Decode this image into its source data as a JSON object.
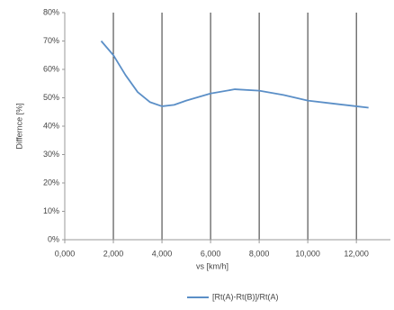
{
  "chart_data": {
    "type": "line",
    "x_label": "vs [km/h]",
    "y_label": "Differnce [%]",
    "x": [
      1500,
      2000,
      2500,
      3000,
      3500,
      4000,
      4500,
      5000,
      6000,
      7000,
      8000,
      9000,
      10000,
      11000,
      12000,
      12500
    ],
    "series": [
      {
        "name": "[Rt(A)-Rt(B)]/Rt(A)",
        "color": "#5b8fc7",
        "values": [
          70,
          65,
          58,
          52,
          48.5,
          47,
          47.5,
          49,
          51.5,
          53,
          52.5,
          51,
          49,
          48,
          47,
          46.5
        ]
      }
    ],
    "xlim": [
      0,
      13400
    ],
    "xticks": [
      {
        "value": 0,
        "label": "0,000"
      },
      {
        "value": 2000,
        "label": "2,000"
      },
      {
        "value": 4000,
        "label": "4,000"
      },
      {
        "value": 6000,
        "label": "6,000"
      },
      {
        "value": 8000,
        "label": "8,000"
      },
      {
        "value": 10000,
        "label": "10,000"
      },
      {
        "value": 12000,
        "label": "12,000"
      }
    ],
    "ylim": [
      0,
      80
    ],
    "yticks": [
      {
        "value": 0,
        "label": "0%"
      },
      {
        "value": 10,
        "label": "10%"
      },
      {
        "value": 20,
        "label": "20%"
      },
      {
        "value": 30,
        "label": "30%"
      },
      {
        "value": 40,
        "label": "40%"
      },
      {
        "value": 50,
        "label": "50%"
      },
      {
        "value": 60,
        "label": "60%"
      },
      {
        "value": 70,
        "label": "70%"
      },
      {
        "value": 80,
        "label": "80%"
      }
    ],
    "grid": "x",
    "legend": "bottom"
  }
}
